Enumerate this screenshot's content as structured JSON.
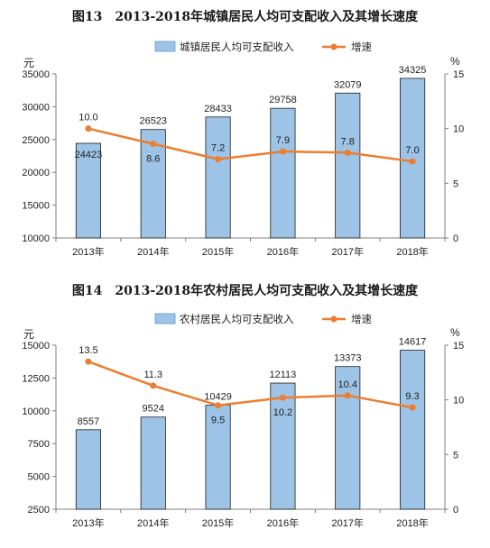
{
  "chart_data": [
    {
      "type": "bar",
      "title": "图13　2013-2018年城镇居民人均可支配收入及其增长速度",
      "categories": [
        "2013年",
        "2014年",
        "2015年",
        "2016年",
        "2017年",
        "2018年"
      ],
      "y_unit": "元",
      "y2_unit": "%",
      "ylim": [
        10000,
        35000
      ],
      "yticks": [
        10000,
        15000,
        20000,
        25000,
        30000,
        35000
      ],
      "y2lim": [
        0,
        15
      ],
      "y2ticks": [
        0,
        5,
        10,
        15
      ],
      "legend_position": "top",
      "grid": false,
      "series": [
        {
          "name": "城镇居民人均可支配收入",
          "type": "bar",
          "axis": "left",
          "color": "#9dc3e6",
          "values": [
            24423,
            26523,
            28433,
            29758,
            32079,
            34325
          ],
          "labels": [
            "24423",
            "26523",
            "28433",
            "29758",
            "32079",
            "34325"
          ]
        },
        {
          "name": "增速",
          "type": "line",
          "axis": "right",
          "color": "#ed7d31",
          "values": [
            10.0,
            8.6,
            7.2,
            7.9,
            7.8,
            7.0
          ],
          "labels": [
            "10.0",
            "8.6",
            "7.2",
            "7.9",
            "7.8",
            "7.0"
          ]
        }
      ]
    },
    {
      "type": "bar",
      "title": "图14　2013-2018年农村居民人均可支配收入及其增长速度",
      "categories": [
        "2013年",
        "2014年",
        "2015年",
        "2016年",
        "2017年",
        "2018年"
      ],
      "y_unit": "元",
      "y2_unit": "%",
      "ylim": [
        2500,
        15000
      ],
      "yticks": [
        2500,
        5000,
        7500,
        10000,
        12500,
        15000
      ],
      "y2lim": [
        0,
        15
      ],
      "y2ticks": [
        0,
        5,
        10,
        15
      ],
      "legend_position": "top",
      "grid": false,
      "series": [
        {
          "name": "农村居民人均可支配收入",
          "type": "bar",
          "axis": "left",
          "color": "#9dc3e6",
          "values": [
            8557,
            9524,
            10429,
            12113,
            13373,
            14617
          ],
          "labels": [
            "8557",
            "9524",
            "10429",
            "12113",
            "13373",
            "14617"
          ]
        },
        {
          "name": "增速",
          "type": "line",
          "axis": "right",
          "color": "#ed7d31",
          "values": [
            13.5,
            11.3,
            9.5,
            10.2,
            10.4,
            9.3
          ],
          "labels": [
            "13.5",
            "11.3",
            "9.5",
            "10.2",
            "10.4",
            "9.3"
          ]
        }
      ]
    }
  ]
}
